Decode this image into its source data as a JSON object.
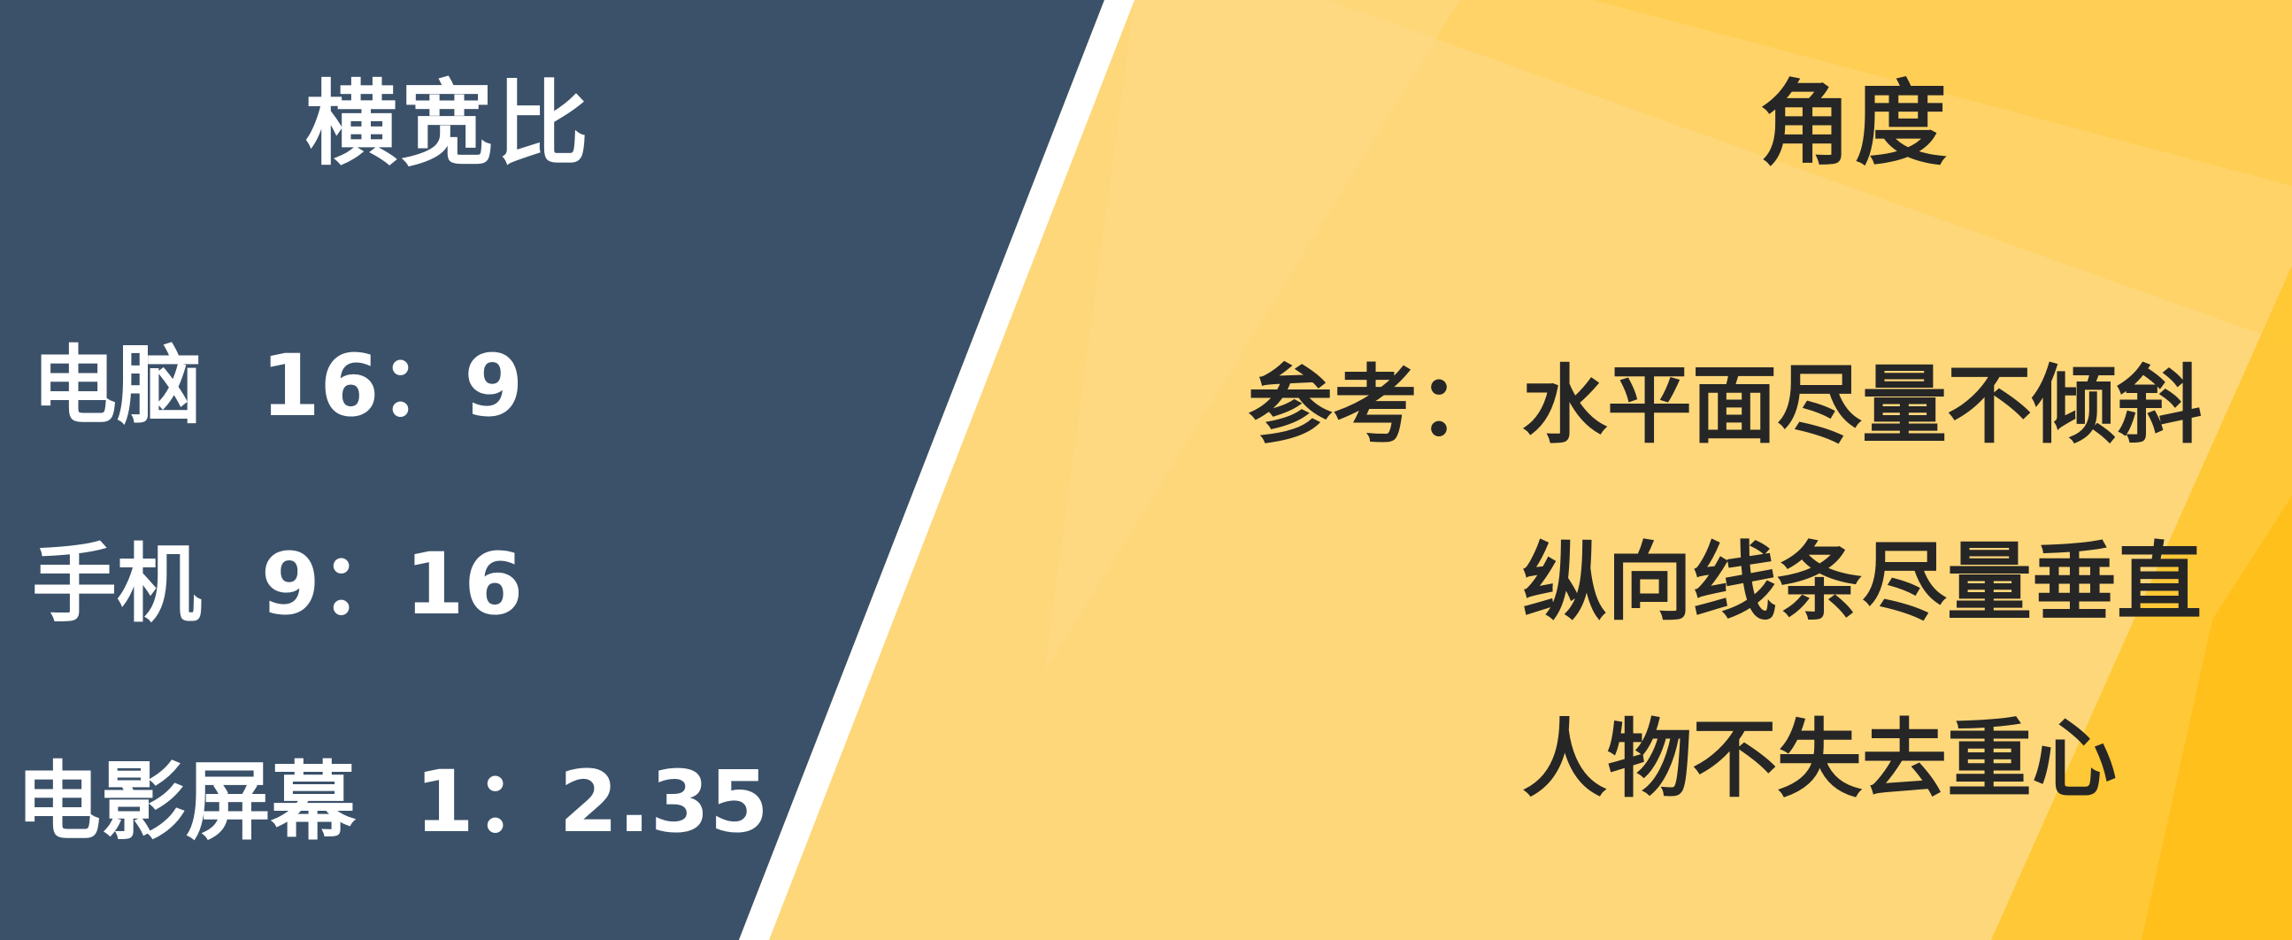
{
  "left": {
    "title": "横宽比",
    "items": [
      {
        "label": "电脑",
        "ratio": "16：9"
      },
      {
        "label": "手机",
        "ratio": "9：16"
      },
      {
        "label": "电影屏幕",
        "ratio": "1：2.35"
      }
    ]
  },
  "right": {
    "title": "角度",
    "prefix": "参考：",
    "items": [
      "水平面尽量不倾斜",
      "纵向线条尽量垂直",
      "人物不失去重心"
    ]
  },
  "colors": {
    "left_bg": "#3b5169",
    "right_bg": "#fed77a",
    "accent_yellow": "#ffc733",
    "divider": "#ffffff",
    "left_text": "#ffffff",
    "right_text": "#262626"
  }
}
